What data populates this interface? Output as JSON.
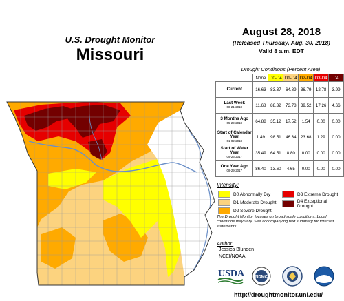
{
  "header": {
    "left_title": "U.S. Drought Monitor",
    "state": "Missouri",
    "date": "August 28, 2018",
    "released": "(Released Thursday, Aug. 30, 2018)",
    "valid": "Valid 8 a.m. EDT"
  },
  "table": {
    "title": "Drought Conditions (Percent Area)",
    "columns": [
      "None",
      "D0-D4",
      "D1-D4",
      "D2-D4",
      "D3-D4",
      "D4"
    ],
    "rows": [
      {
        "label": "Current",
        "sub": "",
        "values": [
          "16.63",
          "83.37",
          "64.89",
          "36.79",
          "12.78",
          "3.99"
        ]
      },
      {
        "label": "Last Week",
        "sub": "08-21-2018",
        "values": [
          "11.68",
          "88.32",
          "73.78",
          "39.52",
          "17.26",
          "4.66"
        ]
      },
      {
        "label": "3 Months Ago",
        "sub": "05-29-2018",
        "values": [
          "64.88",
          "35.12",
          "17.52",
          "1.54",
          "0.00",
          "0.00"
        ]
      },
      {
        "label": "Start of Calendar Year",
        "sub": "01-02-2018",
        "values": [
          "1.49",
          "98.51",
          "46.34",
          "23.68",
          "1.29",
          "0.00"
        ]
      },
      {
        "label": "Start of Water Year",
        "sub": "09-26-2017",
        "values": [
          "35.49",
          "64.51",
          "8.80",
          "0.00",
          "0.00",
          "0.00"
        ]
      },
      {
        "label": "One Year Ago",
        "sub": "08-29-2017",
        "values": [
          "86.40",
          "13.60",
          "4.65",
          "0.00",
          "0.00",
          "0.00"
        ]
      }
    ]
  },
  "legend": {
    "title": "Intensity:",
    "items": [
      {
        "label": "D0 Abnormally Dry",
        "color": "#ffff00"
      },
      {
        "label": "D1 Moderate Drought",
        "color": "#fcd37f"
      },
      {
        "label": "D2 Severe Drought",
        "color": "#ffaa00"
      },
      {
        "label": "D3 Extreme Drought",
        "color": "#e60000"
      },
      {
        "label": "D4 Exceptional Drought",
        "color": "#730000"
      }
    ]
  },
  "note": "The Drought Monitor focuses on broad-scale conditions. Local conditions may vary. See accompanying text summary for forecast statements.",
  "author": {
    "heading": "Author:",
    "name": "Jessica Blunden",
    "org": "NCEI/NOAA"
  },
  "logos": {
    "usda": "USDA",
    "ndmc": "NDMC"
  },
  "url": "http://droughtmonitor.unl.edu/",
  "colors": {
    "none": "#ffffff",
    "d0": "#ffff00",
    "d1": "#fcd37f",
    "d2": "#ffaa00",
    "d3": "#e60000",
    "d4": "#730000",
    "water": "#6a8fc8"
  }
}
